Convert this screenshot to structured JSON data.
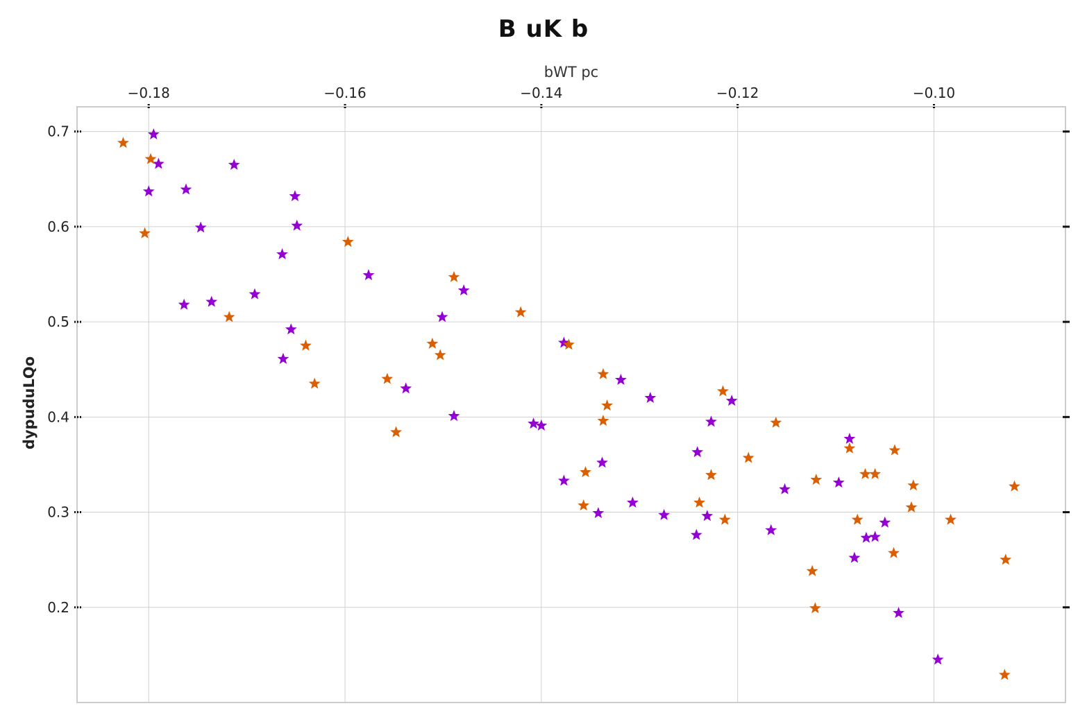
{
  "chart_data": {
    "type": "scatter",
    "title": "B uK b",
    "xlabel": "bWT  pc",
    "ylabel": "dypuduLQo",
    "x_axis_position": "top",
    "xlim": [
      -0.1873,
      -0.0866
    ],
    "ylim": [
      0.1,
      0.726
    ],
    "xticks": [
      -0.18,
      -0.16,
      -0.14,
      -0.12,
      -0.1
    ],
    "xtick_labels": [
      "−0.18",
      "−0.16",
      "−0.14",
      "−0.12",
      "−0.10"
    ],
    "yticks": [
      0.2,
      0.3,
      0.4,
      0.5,
      0.6,
      0.7
    ],
    "ytick_labels": [
      "0.2",
      "0.3",
      "0.4",
      "0.5",
      "0.6",
      "0.7"
    ],
    "grid": true,
    "marker": "star",
    "series": [
      {
        "color": "#9400d3",
        "points": [
          [
            -0.1795,
            0.697
          ],
          [
            -0.179,
            0.666
          ],
          [
            -0.18,
            0.637
          ],
          [
            -0.1762,
            0.639
          ],
          [
            -0.1747,
            0.599
          ],
          [
            -0.1713,
            0.665
          ],
          [
            -0.1651,
            0.632
          ],
          [
            -0.1649,
            0.601
          ],
          [
            -0.1664,
            0.571
          ],
          [
            -0.1764,
            0.518
          ],
          [
            -0.1736,
            0.521
          ],
          [
            -0.1692,
            0.529
          ],
          [
            -0.1655,
            0.492
          ],
          [
            -0.1663,
            0.461
          ],
          [
            -0.1576,
            0.549
          ],
          [
            -0.1501,
            0.505
          ],
          [
            -0.1479,
            0.533
          ],
          [
            -0.1538,
            0.43
          ],
          [
            -0.1489,
            0.401
          ],
          [
            -0.1408,
            0.393
          ],
          [
            -0.14,
            0.391
          ],
          [
            -0.1377,
            0.478
          ],
          [
            -0.1319,
            0.439
          ],
          [
            -0.1289,
            0.42
          ],
          [
            -0.1206,
            0.417
          ],
          [
            -0.1227,
            0.395
          ],
          [
            -0.1241,
            0.363
          ],
          [
            -0.1338,
            0.352
          ],
          [
            -0.1377,
            0.333
          ],
          [
            -0.1342,
            0.299
          ],
          [
            -0.1307,
            0.31
          ],
          [
            -0.1275,
            0.297
          ],
          [
            -0.1231,
            0.296
          ],
          [
            -0.1242,
            0.276
          ],
          [
            -0.1152,
            0.324
          ],
          [
            -0.1166,
            0.281
          ],
          [
            -0.1097,
            0.331
          ],
          [
            -0.1086,
            0.377
          ],
          [
            -0.1081,
            0.252
          ],
          [
            -0.1069,
            0.273
          ],
          [
            -0.106,
            0.274
          ],
          [
            -0.105,
            0.289
          ],
          [
            -0.1036,
            0.194
          ],
          [
            -0.0996,
            0.145
          ]
        ]
      },
      {
        "color": "#d95f02",
        "points": [
          [
            -0.1826,
            0.688
          ],
          [
            -0.1798,
            0.671
          ],
          [
            -0.1804,
            0.593
          ],
          [
            -0.1718,
            0.505
          ],
          [
            -0.164,
            0.475
          ],
          [
            -0.1631,
            0.435
          ],
          [
            -0.1597,
            0.584
          ],
          [
            -0.1489,
            0.547
          ],
          [
            -0.1511,
            0.477
          ],
          [
            -0.1503,
            0.465
          ],
          [
            -0.1557,
            0.44
          ],
          [
            -0.1548,
            0.384
          ],
          [
            -0.1421,
            0.51
          ],
          [
            -0.1372,
            0.476
          ],
          [
            -0.1337,
            0.445
          ],
          [
            -0.1333,
            0.412
          ],
          [
            -0.1337,
            0.396
          ],
          [
            -0.1355,
            0.342
          ],
          [
            -0.1357,
            0.307
          ],
          [
            -0.1215,
            0.427
          ],
          [
            -0.1227,
            0.339
          ],
          [
            -0.1239,
            0.31
          ],
          [
            -0.1213,
            0.292
          ],
          [
            -0.1189,
            0.357
          ],
          [
            -0.1161,
            0.394
          ],
          [
            -0.112,
            0.334
          ],
          [
            -0.1124,
            0.238
          ],
          [
            -0.1121,
            0.199
          ],
          [
            -0.1086,
            0.367
          ],
          [
            -0.1078,
            0.292
          ],
          [
            -0.107,
            0.34
          ],
          [
            -0.106,
            0.34
          ],
          [
            -0.104,
            0.365
          ],
          [
            -0.1041,
            0.257
          ],
          [
            -0.1021,
            0.328
          ],
          [
            -0.1023,
            0.305
          ],
          [
            -0.0983,
            0.292
          ],
          [
            -0.0927,
            0.25
          ],
          [
            -0.0928,
            0.129
          ],
          [
            -0.0918,
            0.327
          ]
        ]
      }
    ]
  }
}
